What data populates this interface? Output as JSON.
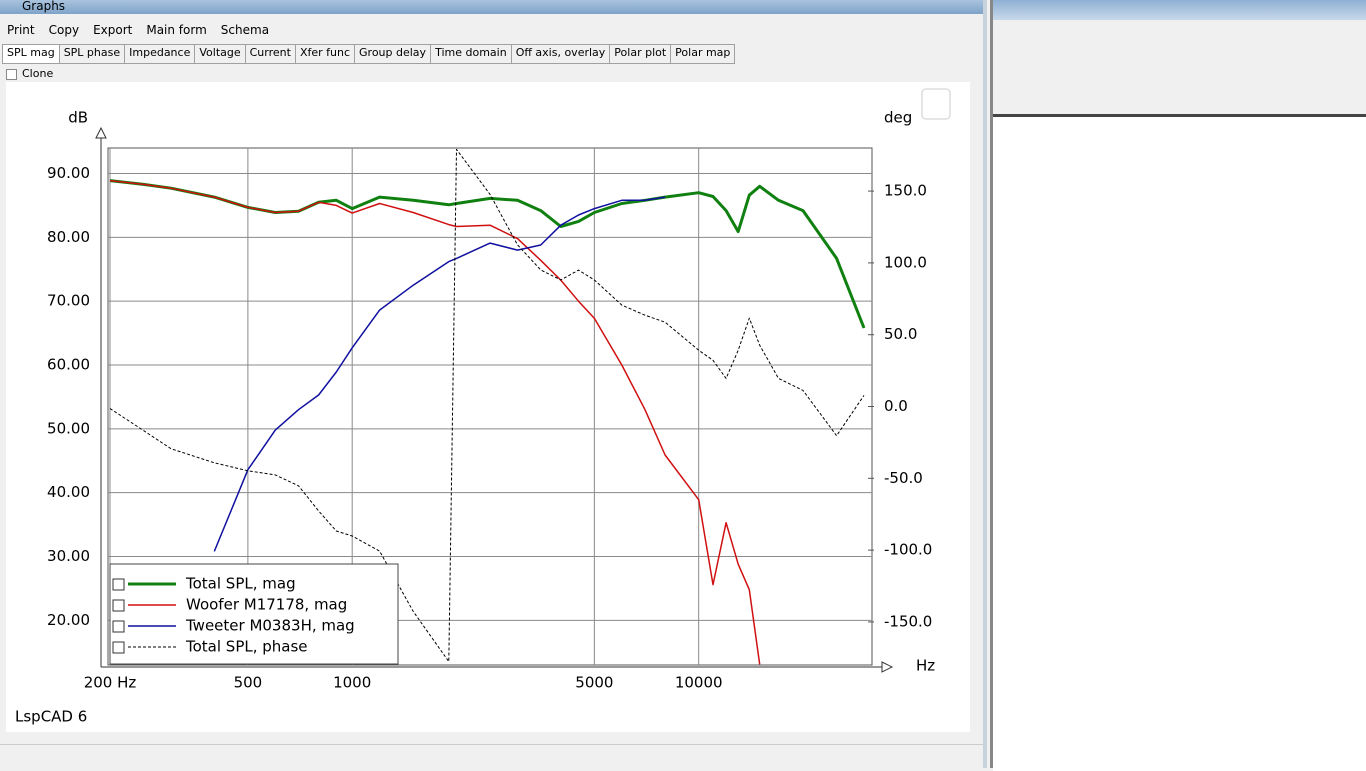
{
  "window": {
    "title": "Graphs",
    "menu": [
      "Print",
      "Copy",
      "Export",
      "Main form",
      "Schema"
    ],
    "tabs": [
      "SPL mag",
      "SPL phase",
      "Impedance",
      "Voltage",
      "Current",
      "Xfer func",
      "Group delay",
      "Time domain",
      "Off axis, overlay",
      "Polar plot",
      "Polar map"
    ],
    "clone": "Clone",
    "footer": "LspCAD 6"
  },
  "chart_data": {
    "type": "line",
    "y_label": "dB",
    "y2_label": "deg",
    "x_label": "Hz",
    "x": [
      200,
      250,
      300,
      400,
      500,
      600,
      700,
      800,
      900,
      1000,
      1200,
      1500,
      1900,
      2000,
      2500,
      3000,
      3500,
      4000,
      4500,
      5000,
      6000,
      7000,
      8000,
      10000,
      11000,
      12000,
      13000,
      14000,
      15000,
      17000,
      20000,
      25000,
      30000
    ],
    "xlim": [
      200,
      30000
    ],
    "xlog": true,
    "xticks": [
      {
        "value": 200,
        "label": "200 Hz"
      },
      500,
      1000,
      5000,
      10000
    ],
    "ylim": [
      13,
      94
    ],
    "yticks": [
      {
        "value": 90,
        "label": "90.00"
      },
      {
        "value": 80,
        "label": "80.00"
      },
      {
        "value": 70,
        "label": "70.00"
      },
      {
        "value": 60,
        "label": "60.00"
      },
      {
        "value": 50,
        "label": "50.00"
      },
      {
        "value": 40,
        "label": "40.00"
      },
      {
        "value": 30,
        "label": "30.00"
      },
      {
        "value": 20,
        "label": "20.00"
      }
    ],
    "y2lim": [
      -180,
      180
    ],
    "y2ticks": [
      {
        "value": 150,
        "label": "150.0"
      },
      {
        "value": 100,
        "label": "100.0"
      },
      {
        "value": 50,
        "label": "50.0"
      },
      {
        "value": 0,
        "label": "0.0"
      },
      {
        "value": -50,
        "label": "-50.0"
      },
      {
        "value": -100,
        "label": "-100.0"
      },
      {
        "value": -150,
        "label": "-150.0"
      }
    ],
    "grid": true,
    "legend": "lower left",
    "series": [
      {
        "name": "Total SPL, mag",
        "color": "#108010",
        "width": 3,
        "values": [
          88.9,
          88.3,
          87.7,
          86.3,
          84.7,
          83.9,
          84.1,
          85.5,
          85.8,
          84.5,
          86.3,
          85.8,
          85.1,
          85.3,
          86.1,
          85.8,
          84.2,
          81.7,
          82.5,
          83.9,
          85.3,
          85.8,
          86.3,
          87.0,
          86.4,
          84.2,
          80.9,
          86.6,
          88.0,
          85.8,
          84.2,
          76.7,
          65.8
        ]
      },
      {
        "name": "Woofer M17178, mag",
        "color": "#d01010",
        "width": 1.5,
        "values": [
          88.9,
          88.3,
          87.7,
          86.3,
          84.7,
          83.9,
          84.1,
          85.5,
          85.0,
          83.8,
          85.3,
          83.9,
          82.0,
          81.7,
          81.9,
          79.8,
          76.4,
          73.3,
          70.0,
          67.3,
          60.0,
          53.0,
          45.9,
          38.9,
          25.6,
          35.3,
          28.8,
          24.8,
          13.1,
          null,
          null,
          null,
          null
        ]
      },
      {
        "name": "Tweeter M0383H, mag",
        "color": "#1010a0",
        "width": 1.5,
        "values": [
          null,
          null,
          null,
          30.8,
          43.6,
          49.8,
          53.0,
          55.3,
          58.9,
          62.7,
          68.6,
          72.5,
          76.2,
          76.7,
          79.1,
          78.0,
          78.8,
          81.9,
          83.5,
          84.5,
          85.8,
          85.8,
          86.3,
          null,
          null,
          null,
          null,
          null,
          null,
          null,
          null,
          null,
          null
        ]
      },
      {
        "name": "Total SPL, phase",
        "color": "#000000",
        "width": 1,
        "dashed": true,
        "axis": "y2",
        "values": [
          -1.4,
          -16.8,
          -29.4,
          -39.2,
          -44.8,
          -47.6,
          -55.2,
          -72.7,
          -86.7,
          -90.2,
          -100.7,
          -142.7,
          -177.6,
          179,
          147.6,
          112.6,
          95.1,
          88.1,
          95,
          88.1,
          70.6,
          63.6,
          58.7,
          39.2,
          32.2,
          19.6,
          39.2,
          61.5,
          42.7,
          19.6,
          11.2,
          -20.3,
          7.7
        ]
      }
    ]
  }
}
